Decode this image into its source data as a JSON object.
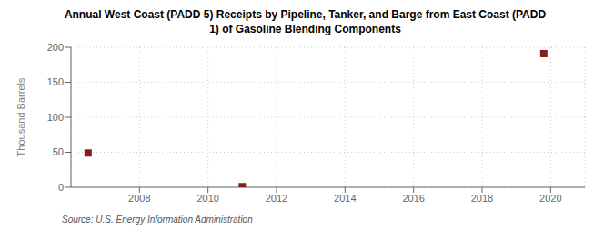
{
  "chart_data": {
    "type": "scatter",
    "title": "Annual West Coast (PADD 5) Receipts by Pipeline, Tanker, and Barge from East Coast (PADD\n1) of Gasoline Blending Components",
    "y_label": "Thousand Barrels",
    "annotations": [
      "Source: U.S. Energy Information Administration"
    ],
    "x": [
      2006.5,
      2011,
      2019.8
    ],
    "values": [
      49,
      1,
      191
    ],
    "color": "#8b1a1a",
    "marker": "square",
    "xlim": [
      2006.0,
      2021.0
    ],
    "ylim": [
      0,
      200
    ],
    "xticks": [
      2008,
      2010,
      2012,
      2014,
      2016,
      2018,
      2020
    ],
    "yticks": [
      0,
      50,
      100,
      150,
      200
    ],
    "grid": true
  }
}
